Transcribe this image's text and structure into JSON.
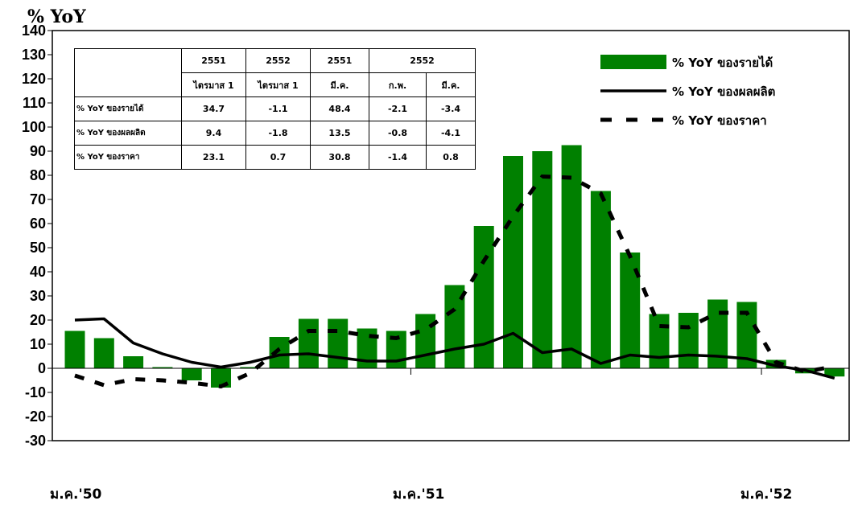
{
  "chart_data": {
    "type": "bar",
    "title": "% YoY",
    "ylim": [
      -30,
      140
    ],
    "yticks": [
      140,
      130,
      120,
      110,
      100,
      90,
      80,
      70,
      60,
      50,
      40,
      30,
      20,
      10,
      0,
      -10,
      -20,
      -30
    ],
    "x_labels": [
      "ม.ค.'50",
      "ม.ค.'51",
      "ม.ค.'52"
    ],
    "period_count": 27,
    "series": [
      {
        "name": "% YoY ของรายได้",
        "kind": "bar",
        "color": "#008000",
        "values": [
          15.5,
          12.5,
          5,
          0.5,
          -5,
          -8,
          0.5,
          13,
          20.5,
          20.5,
          16.5,
          15.5,
          22.5,
          34.5,
          59,
          88,
          90,
          92.5,
          73.5,
          48,
          22.5,
          23,
          28.5,
          27.5,
          3.5,
          -2.1,
          -3.4
        ]
      },
      {
        "name": "% YoY ของผลผลิต",
        "kind": "line",
        "color": "#000000",
        "values": [
          20,
          20.5,
          10.5,
          6,
          2.5,
          0.5,
          2.5,
          5.5,
          6,
          4.5,
          3,
          3,
          5.5,
          8,
          10,
          14.5,
          6.5,
          8,
          2,
          5.5,
          4.5,
          5.5,
          5,
          4,
          1,
          -0.8,
          -4.1
        ]
      },
      {
        "name": "% YoY ของราคา",
        "kind": "dashed",
        "color": "#000000",
        "values": [
          -3,
          -7,
          -4.5,
          -5,
          -6,
          -7.5,
          -2,
          8,
          15.5,
          15.5,
          13.5,
          12.5,
          16,
          24.5,
          44.5,
          63,
          79.5,
          79,
          72.5,
          46.5,
          17.5,
          17,
          23,
          23,
          2.5,
          -1.4,
          0.8
        ]
      }
    ],
    "table": {
      "header_years": [
        "2551",
        "2552",
        "2551",
        "2552"
      ],
      "header_periods": [
        "ไตรมาส 1",
        "ไตรมาส 1",
        "มี.ค.",
        "ก.พ.",
        "มี.ค."
      ],
      "rows": [
        {
          "label": "% YoY ของรายได้",
          "values": [
            "34.7",
            "-1.1",
            "48.4",
            "-2.1",
            "-3.4"
          ]
        },
        {
          "label": "% YoY ของผลผลิต",
          "values": [
            "9.4",
            "-1.8",
            "13.5",
            "-0.8",
            "-4.1"
          ]
        },
        {
          "label": "% YoY ของราคา",
          "values": [
            "23.1",
            "0.7",
            "30.8",
            "-1.4",
            "0.8"
          ]
        }
      ]
    }
  }
}
